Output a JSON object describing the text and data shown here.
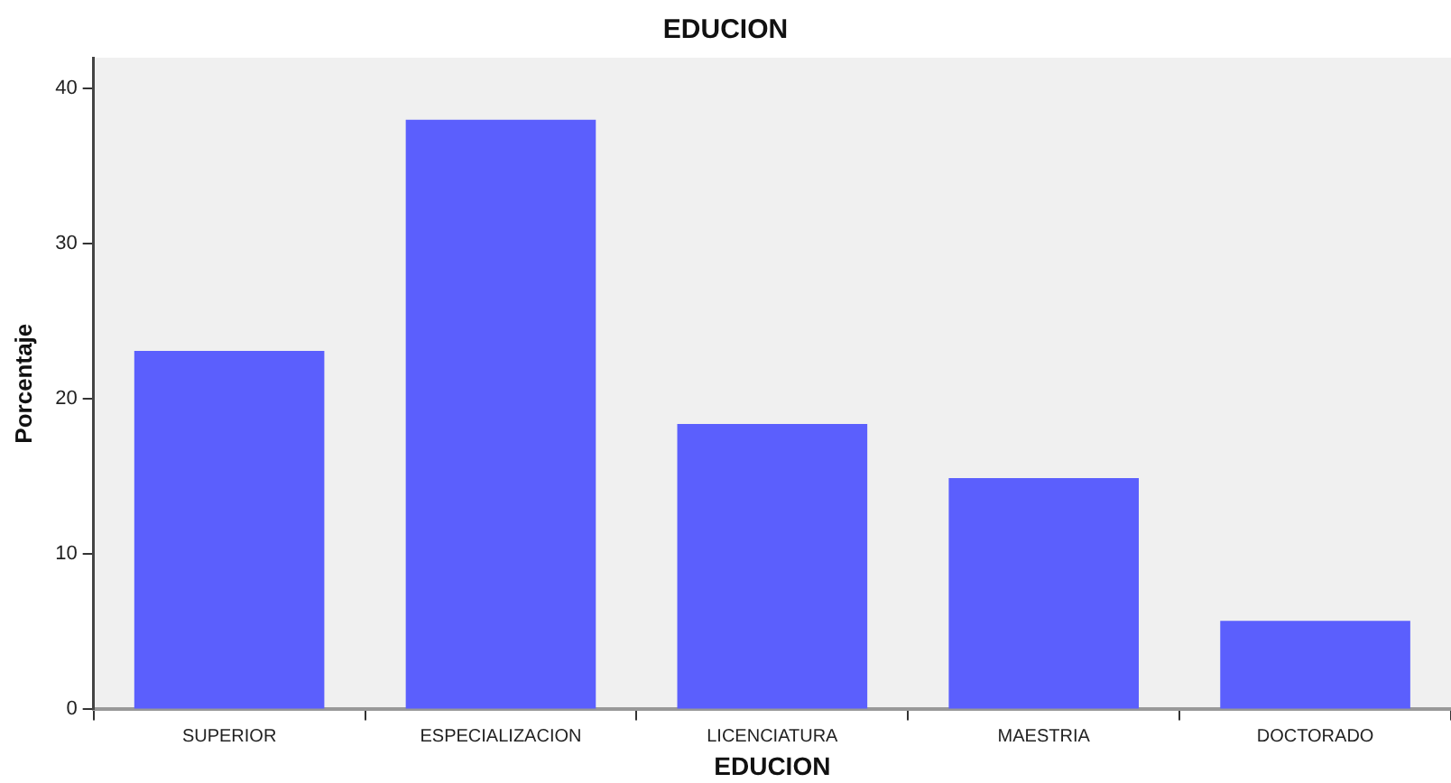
{
  "chart_data": {
    "type": "bar",
    "title": "EDUCION",
    "xlabel": "EDUCION",
    "ylabel": "Porcentaje",
    "categories": [
      "SUPERIOR",
      "ESPECIALIZACION",
      "LICENCIATURA",
      "MAESTRIA",
      "DOCTORADO"
    ],
    "values": [
      23.1,
      38,
      18.4,
      14.9,
      5.7
    ],
    "color": "#5b5ffd",
    "ylim": [
      0,
      42
    ],
    "yticks": [
      0,
      10,
      20,
      30,
      40
    ],
    "grid": false,
    "legend": false
  }
}
